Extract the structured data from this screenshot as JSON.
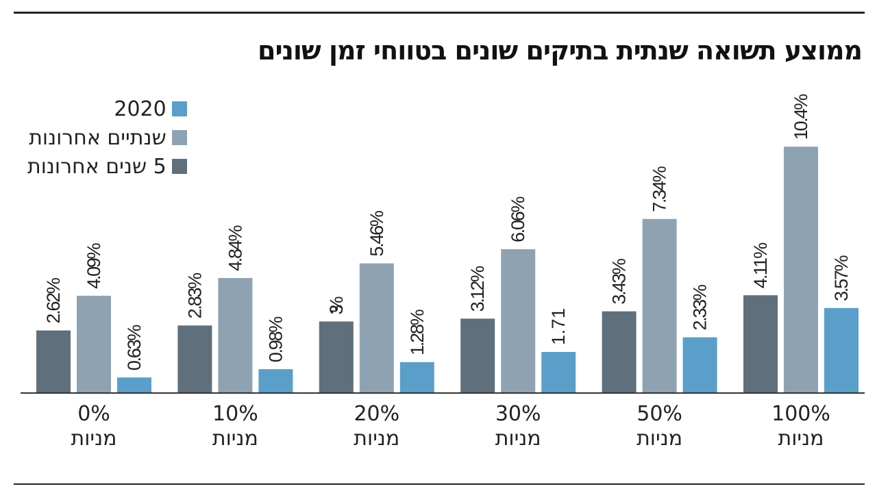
{
  "chart_data": {
    "type": "bar",
    "title": "ממוצע תשואה שנתית בתיקים שונים בטווחי זמן שונים",
    "categories": [
      {
        "line1": "0%",
        "line2": "מניות"
      },
      {
        "line1": "10%",
        "line2": "מניות"
      },
      {
        "line1": "20%",
        "line2": "מניות"
      },
      {
        "line1": "30%",
        "line2": "מניות"
      },
      {
        "line1": "50%",
        "line2": "מניות"
      },
      {
        "line1": "100%",
        "line2": "מניות"
      }
    ],
    "series": [
      {
        "name": "5 שנים אחרונות",
        "color": "#5f6f7b",
        "values": [
          2.62,
          2.83,
          3,
          3.12,
          3.43,
          4.11
        ],
        "labels": [
          "2.62%",
          "2.83%",
          "3%",
          "3.12%",
          "3.43%",
          "4.11%"
        ]
      },
      {
        "name": "שנתיים אחרונות",
        "color": "#8fa2b2",
        "values": [
          4.09,
          4.84,
          5.46,
          6.06,
          7.34,
          10.4
        ],
        "labels": [
          "4.09%",
          "4.84%",
          "5.46%",
          "6.06%",
          "7.34%",
          "10.4%"
        ]
      },
      {
        "name": "2020",
        "color": "#5a9fc9",
        "values": [
          0.63,
          0.98,
          1.28,
          1.71,
          2.33,
          3.57
        ],
        "labels": [
          "0.63%",
          "0.98%",
          "1.28%",
          "1.71",
          "2.33%",
          "3.57%"
        ]
      }
    ],
    "legend_order": [
      2,
      1,
      0
    ],
    "legend_position": "top-left",
    "unit": "%",
    "grid": false
  }
}
